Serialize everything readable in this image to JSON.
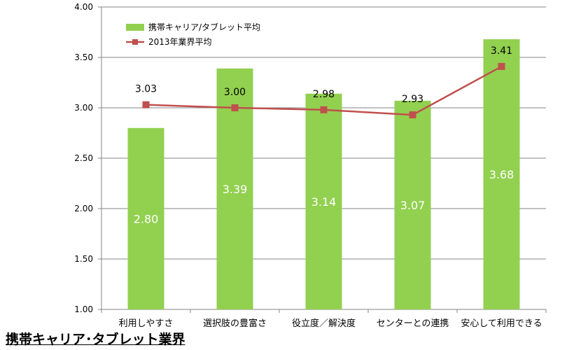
{
  "chart_data": {
    "type": "bar",
    "categories": [
      "利用しやすさ",
      "選択肢の豊富さ",
      "役立度／解決度",
      "センターとの連携",
      "安心して利用できる"
    ],
    "series": [
      {
        "name": "携帯キャリア/タブレット平均",
        "type": "bar",
        "values": [
          2.8,
          3.39,
          3.14,
          3.07,
          3.68
        ],
        "labels": [
          "2.80",
          "3.39",
          "3.14",
          "3.07",
          "3.68"
        ],
        "color": "#92d050"
      },
      {
        "name": "2013年業界平均",
        "type": "line",
        "values": [
          3.03,
          3.0,
          2.98,
          2.93,
          3.41
        ],
        "labels": [
          "3.03",
          "3.00",
          "2.98",
          "2.93",
          "3.41"
        ],
        "color": "#c0504d"
      }
    ],
    "ylim": [
      1.0,
      4.0
    ],
    "yticks": [
      "1.00",
      "1.50",
      "2.00",
      "2.50",
      "3.00",
      "3.50",
      "4.00"
    ],
    "grid": true,
    "legend": "top-left"
  },
  "caption": "携帯キャリア･タブレット業界"
}
